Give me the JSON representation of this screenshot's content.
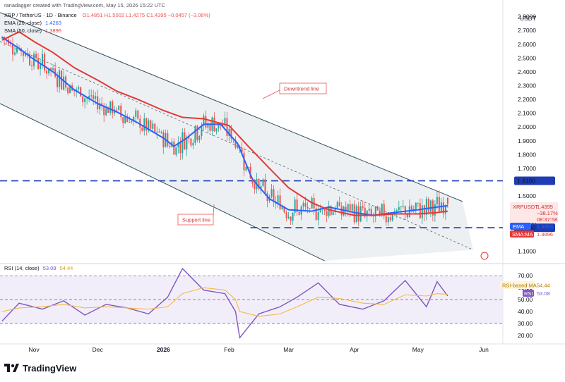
{
  "header": {
    "created_by": "ranadagger created with TradingView.com, May 15, 2026 15:22 UTC",
    "symbol_line": "XRP / TetherUS · 1D · Binance",
    "ohlc": "O1.4851 H1.5002 L1.4275 C1.4395 −0.0457 (−3.08%)",
    "ema_label": "EMA (20, close)",
    "ema_value": "1.4263",
    "sma_label": "SMA (50, close)",
    "sma_value": "1.3896"
  },
  "axis": {
    "currency": "USDT",
    "price_ticks": [
      "2.8000",
      "2.7000",
      "2.6000",
      "2.5000",
      "2.4000",
      "2.3000",
      "2.2000",
      "2.1000",
      "2.0000",
      "1.9000",
      "1.8000",
      "1.7000",
      "1.5000",
      "1.3000",
      "1.1000"
    ],
    "rsi_ticks": [
      "70.00",
      "60.00",
      "50.00",
      "40.00",
      "30.00",
      "20.00"
    ],
    "months": [
      "Nov",
      "Dec",
      "2026",
      "Feb",
      "Mar",
      "Apr",
      "May",
      "Jun"
    ]
  },
  "price_labels": {
    "resistance": "1.6100",
    "symbol": "XRPUSDT",
    "close": "1.4395",
    "change": "−38.17%",
    "countdown": "08:37:58",
    "ema_tag": "EMA",
    "ema_value": "1.4263",
    "sma_tag": "SMA:MA",
    "sma_value": "1.3896",
    "support": "1.2700"
  },
  "annotations": {
    "downtrend": "Downtrend line",
    "support": "Support line"
  },
  "rsi": {
    "label": "RSI (14, close)",
    "value": "53.08",
    "ma_value": "54.44",
    "ma_tag": "RSI-based MA",
    "rsi_tag": "RSI",
    "ma_tag_value": "54.44",
    "rsi_tag_value": "53.08"
  },
  "branding": {
    "logo_text": "TradingView"
  },
  "colors": {
    "up": "#26a69a",
    "down": "#ef5350",
    "ema": "#2962ff",
    "sma": "#e53935",
    "rsi": "#7e57c2",
    "rsi_ma": "#f5b942",
    "level_line": "#1e3cb4",
    "channel": "#2f4f5f"
  },
  "chart_data": [
    {
      "type": "candlestick",
      "title": "XRP / TetherUS · 1D · Binance",
      "ylabel": "USDT",
      "ylim": [
        1.02,
        2.88
      ],
      "x_range": [
        "2025-10-16",
        "2026-06-10"
      ],
      "resistance_level": 1.61,
      "support_level": 1.27,
      "close_last": 1.4395,
      "series": [
        {
          "name": "EMA (20, close)",
          "x": [
            "2025-10-17",
            "2025-10-25",
            "2025-11-01",
            "2025-11-10",
            "2025-11-20",
            "2025-12-01",
            "2025-12-10",
            "2025-12-20",
            "2026-01-01",
            "2026-01-06",
            "2026-01-12",
            "2026-01-20",
            "2026-01-28",
            "2026-02-05",
            "2026-02-12",
            "2026-02-20",
            "2026-03-01",
            "2026-03-12",
            "2026-03-20",
            "2026-04-01",
            "2026-04-10",
            "2026-04-20",
            "2026-05-01",
            "2026-05-10",
            "2026-05-15"
          ],
          "values": [
            2.65,
            2.57,
            2.49,
            2.4,
            2.27,
            2.17,
            2.11,
            2.03,
            1.92,
            1.86,
            1.92,
            2.02,
            2.02,
            1.88,
            1.62,
            1.48,
            1.4,
            1.39,
            1.42,
            1.38,
            1.36,
            1.38,
            1.4,
            1.42,
            1.43
          ]
        },
        {
          "name": "SMA (50, close)",
          "x": [
            "2025-10-17",
            "2025-10-25",
            "2025-11-01",
            "2025-11-10",
            "2025-11-20",
            "2025-12-01",
            "2025-12-10",
            "2025-12-20",
            "2026-01-01",
            "2026-01-10",
            "2026-01-20",
            "2026-02-01",
            "2026-02-10",
            "2026-02-20",
            "2026-03-01",
            "2026-03-12",
            "2026-03-20",
            "2026-04-01",
            "2026-04-10",
            "2026-04-20",
            "2026-05-01",
            "2026-05-10",
            "2026-05-15"
          ],
          "values": [
            2.63,
            2.69,
            2.62,
            2.54,
            2.43,
            2.34,
            2.26,
            2.2,
            2.12,
            2.07,
            2.06,
            2.01,
            1.86,
            1.7,
            1.56,
            1.45,
            1.4,
            1.36,
            1.36,
            1.37,
            1.37,
            1.38,
            1.39
          ]
        }
      ]
    },
    {
      "type": "line",
      "title": "RSI (14, close)",
      "ylim": [
        14,
        79
      ],
      "reference_levels": [
        70,
        50,
        30
      ],
      "x": [
        "2025-10-17",
        "2025-10-25",
        "2025-11-05",
        "2025-11-15",
        "2025-11-25",
        "2025-12-05",
        "2025-12-15",
        "2025-12-25",
        "2026-01-03",
        "2026-01-10",
        "2026-01-20",
        "2026-01-30",
        "2026-02-04",
        "2026-02-06",
        "2026-02-15",
        "2026-02-25",
        "2026-03-05",
        "2026-03-15",
        "2026-03-25",
        "2026-04-05",
        "2026-04-15",
        "2026-04-25",
        "2026-05-05",
        "2026-05-10",
        "2026-05-15"
      ],
      "series": [
        {
          "name": "RSI",
          "values": [
            32,
            47,
            42,
            49,
            37,
            46,
            43,
            38,
            52,
            76,
            58,
            55,
            40,
            18,
            38,
            44,
            52,
            64,
            46,
            42,
            49,
            66,
            44,
            65,
            53.08
          ]
        },
        {
          "name": "RSI-based MA",
          "values": [
            40,
            43,
            44,
            46,
            43,
            44,
            43,
            42,
            44,
            55,
            60,
            58,
            50,
            40,
            36,
            38,
            44,
            52,
            51,
            47,
            46,
            54,
            53,
            55,
            54.44
          ]
        }
      ]
    }
  ]
}
